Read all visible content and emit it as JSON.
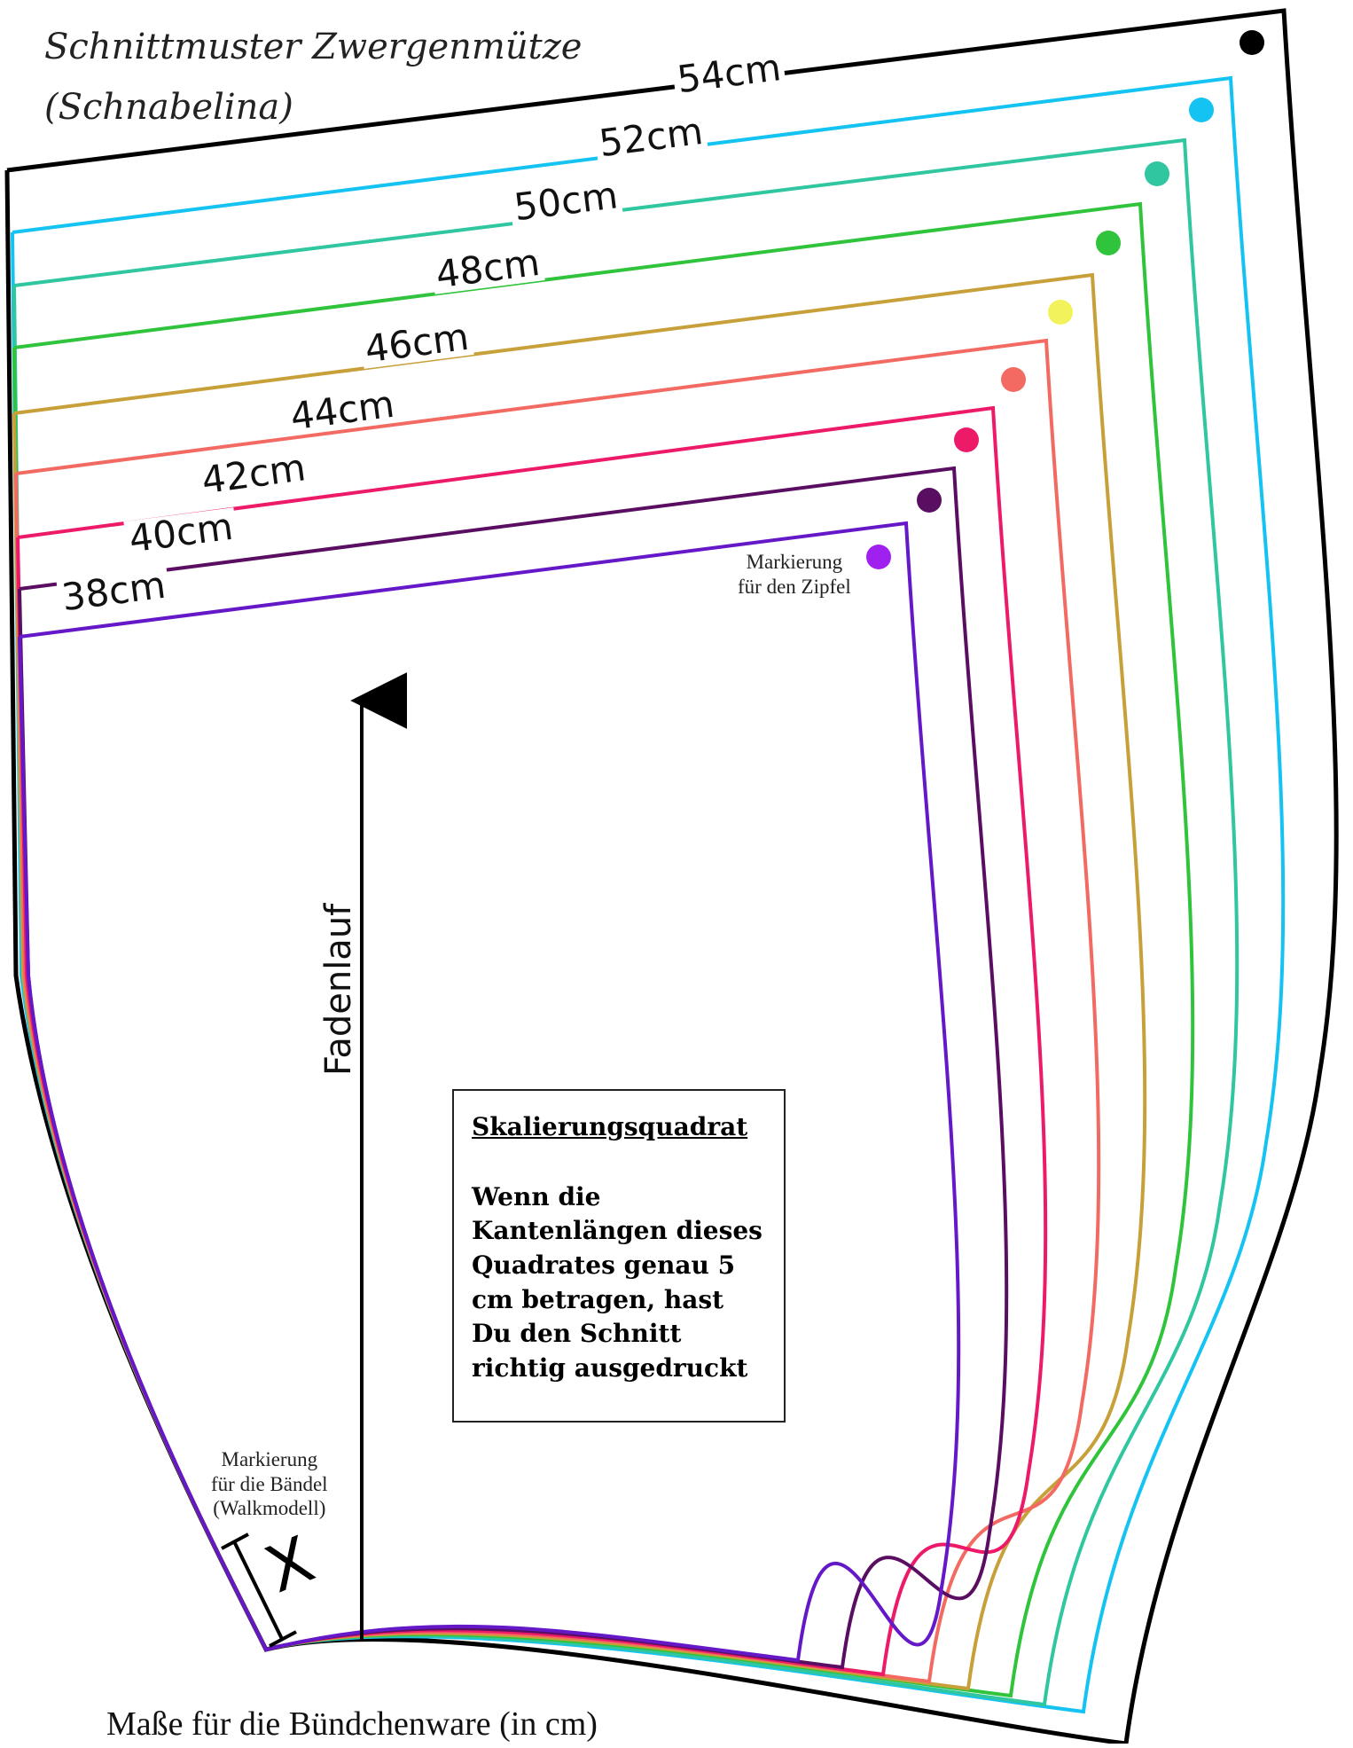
{
  "title_lines": [
    "Schnittmuster Zwergenmütze",
    "(Schnabelina)"
  ],
  "sizes": [
    {
      "label": "54cm",
      "color": "#000000"
    },
    {
      "label": "52cm",
      "color": "#14c3f2"
    },
    {
      "label": "50cm",
      "color": "#2fc6a0"
    },
    {
      "label": "48cm",
      "color": "#2fc43b"
    },
    {
      "label": "46cm",
      "color": "#c8a03a"
    },
    {
      "label": "44cm",
      "color": "#f26a62"
    },
    {
      "label": "42cm",
      "color": "#ec1a68"
    },
    {
      "label": "40cm",
      "color": "#5a0e62"
    },
    {
      "label": "38cm",
      "color": "#6418c8"
    }
  ],
  "marker_dot_colors": [
    "#000000",
    "#14c3f2",
    "#2fc6a0",
    "#2fc43b",
    "#f2f25a",
    "#f26a62",
    "#ec1a68",
    "#5a0e62",
    "#a020f0"
  ],
  "notes": {
    "zipfel": [
      "Markierung",
      "für den Zipfel"
    ],
    "baendel": [
      "Markierung",
      "für die Bändel",
      "(Walkmodell)"
    ]
  },
  "grain_label": "Fadenlauf",
  "x_label": "X",
  "scale_box": {
    "heading": "Skalierungsquadrat",
    "lines": [
      "Wenn die",
      "Kantenlängen dieses",
      "Quadrates genau 5",
      "cm betragen, hast",
      "Du den Schnitt",
      "richtig ausgedruckt"
    ]
  },
  "bottom_caption": "Maße für die Bündchenware (in cm)"
}
